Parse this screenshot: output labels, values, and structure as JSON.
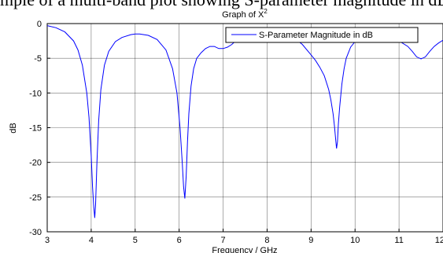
{
  "page": {
    "heading_fragment": "mple of a multi-band plot showing S-parameter magnitude in dB"
  },
  "chart_data": {
    "type": "line",
    "title": "Graph of X",
    "title_superscript": "2",
    "xlabel": "Frequency / GHz",
    "ylabel": "dB",
    "xlim": [
      3,
      12
    ],
    "ylim": [
      -30,
      0
    ],
    "xticks": [
      3,
      4,
      5,
      6,
      7,
      8,
      9,
      10,
      11,
      12
    ],
    "yticks": [
      0,
      -5,
      -10,
      -15,
      -20,
      -25,
      -30
    ],
    "grid": true,
    "legend_position": "top-right",
    "series": [
      {
        "name": "S-Parameter Magnitude in dB",
        "color": "#0000ff",
        "x": [
          3.0,
          3.2,
          3.4,
          3.6,
          3.7,
          3.8,
          3.9,
          3.95,
          4.0,
          4.03,
          4.06,
          4.08,
          4.1,
          4.13,
          4.17,
          4.22,
          4.3,
          4.4,
          4.55,
          4.7,
          4.9,
          5.0,
          5.1,
          5.3,
          5.5,
          5.7,
          5.85,
          5.95,
          6.02,
          6.07,
          6.1,
          6.13,
          6.16,
          6.19,
          6.22,
          6.27,
          6.33,
          6.4,
          6.5,
          6.6,
          6.7,
          6.8,
          6.9,
          7.0,
          7.1,
          7.2,
          7.3,
          7.4,
          7.6,
          7.8,
          8.0,
          8.2,
          8.4,
          8.6,
          8.8,
          9.0,
          9.1,
          9.2,
          9.3,
          9.4,
          9.45,
          9.5,
          9.53,
          9.56,
          9.58,
          9.6,
          9.62,
          9.65,
          9.7,
          9.75,
          9.8,
          9.9,
          10.0,
          10.2,
          10.4,
          10.6,
          10.8,
          11.0,
          11.2,
          11.3,
          11.4,
          11.5,
          11.6,
          11.7,
          11.8,
          11.9,
          12.0
        ],
        "y": [
          -0.3,
          -0.6,
          -1.2,
          -2.5,
          -3.8,
          -6.0,
          -10.0,
          -13.5,
          -19.0,
          -23.5,
          -26.5,
          -28.0,
          -26.0,
          -20.0,
          -14.0,
          -9.5,
          -6.0,
          -4.0,
          -2.6,
          -2.0,
          -1.6,
          -1.5,
          -1.5,
          -1.7,
          -2.3,
          -3.8,
          -6.5,
          -10.0,
          -15.0,
          -20.0,
          -23.5,
          -25.2,
          -22.0,
          -17.0,
          -13.0,
          -9.0,
          -6.5,
          -5.0,
          -4.2,
          -3.6,
          -3.3,
          -3.3,
          -3.6,
          -3.6,
          -3.4,
          -3.0,
          -2.4,
          -2.0,
          -1.5,
          -1.2,
          -1.1,
          -1.2,
          -1.4,
          -2.0,
          -3.0,
          -4.5,
          -5.3,
          -6.3,
          -7.5,
          -9.5,
          -11.0,
          -13.0,
          -14.7,
          -16.7,
          -18.0,
          -17.0,
          -14.5,
          -12.0,
          -8.7,
          -6.5,
          -5.0,
          -3.4,
          -2.6,
          -1.8,
          -1.6,
          -1.7,
          -2.0,
          -2.5,
          -3.3,
          -4.0,
          -4.8,
          -5.1,
          -4.8,
          -4.0,
          -3.3,
          -2.8,
          -2.4
        ]
      }
    ]
  }
}
